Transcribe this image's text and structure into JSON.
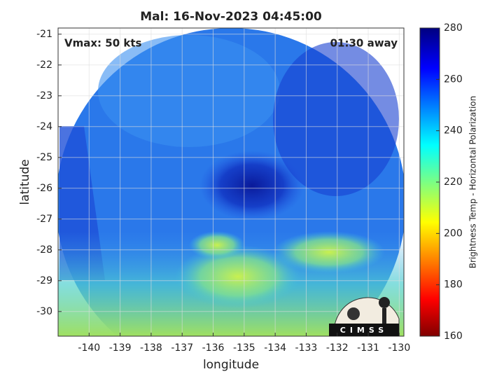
{
  "chart_data": {
    "type": "image",
    "title": "Mal: 16-Nov-2023 04:45:00",
    "xlabel": "longitude",
    "ylabel": "latitude",
    "annotations": [
      "Vmax: 50 kts",
      "01:30 away"
    ],
    "logo_text": "CIMSS",
    "xlim": [
      -141,
      -129.85
    ],
    "ylim": [
      -30.8,
      -20.8
    ],
    "xticks": [
      -140,
      -139,
      -138,
      -137,
      -136,
      -135,
      -134,
      -133,
      -132,
      -131,
      -130
    ],
    "yticks": [
      -30,
      -29,
      -28,
      -27,
      -26,
      -25,
      -24,
      -23,
      -22,
      -21
    ],
    "grid": true,
    "colorbar": {
      "label": "Brightness Temp - Horizontal Polarization",
      "lim": [
        160,
        280
      ],
      "ticks": [
        160,
        180,
        200,
        220,
        240,
        260,
        280
      ]
    }
  }
}
